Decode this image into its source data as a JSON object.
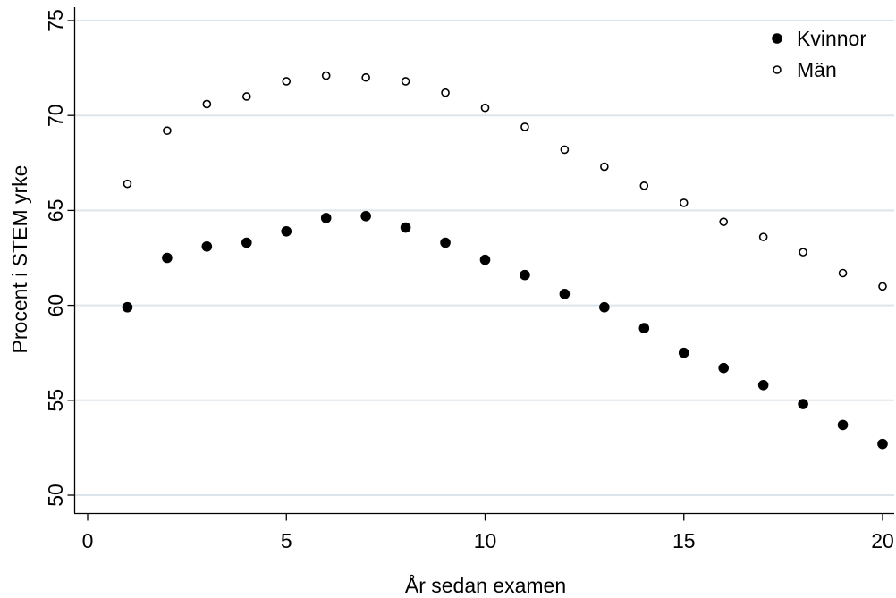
{
  "chart_data": {
    "type": "scatter",
    "title": "",
    "xlabel": "År sedan examen",
    "ylabel": "Procent i STEM yrke",
    "xlim": [
      0,
      20
    ],
    "ylim": [
      49.5,
      75.2
    ],
    "xticks": [
      0,
      5,
      10,
      15,
      20
    ],
    "yticks": [
      50,
      55,
      60,
      65,
      70,
      75
    ],
    "grid": "horizontal",
    "legend_position": "top-right",
    "series": [
      {
        "name": "Kvinnor",
        "marker": "filled-circle",
        "color": "#000000",
        "x": [
          1,
          2,
          3,
          4,
          5,
          6,
          7,
          8,
          9,
          10,
          11,
          12,
          13,
          14,
          15,
          16,
          17,
          18,
          19,
          20
        ],
        "y": [
          59.9,
          62.5,
          63.1,
          63.3,
          63.9,
          64.6,
          64.7,
          64.1,
          63.3,
          62.4,
          61.6,
          60.6,
          59.9,
          58.8,
          57.5,
          56.7,
          55.8,
          54.8,
          53.7,
          52.7
        ]
      },
      {
        "name": "Män",
        "marker": "hollow-circle",
        "color": "#000000",
        "x": [
          1,
          2,
          3,
          4,
          5,
          6,
          7,
          8,
          9,
          10,
          11,
          12,
          13,
          14,
          15,
          16,
          17,
          18,
          19,
          20
        ],
        "y": [
          66.4,
          69.2,
          70.6,
          71.0,
          71.8,
          72.1,
          72.0,
          71.8,
          71.2,
          70.4,
          69.4,
          68.2,
          67.3,
          66.3,
          65.4,
          64.4,
          63.6,
          62.8,
          61.7,
          61.0
        ]
      }
    ]
  },
  "colors": {
    "grid": "#dde5ec",
    "axis": "#000000",
    "marker": "#000000"
  }
}
